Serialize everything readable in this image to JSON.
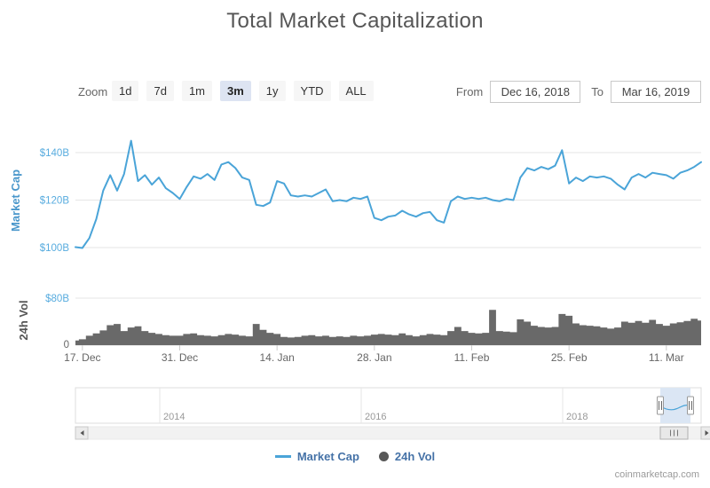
{
  "title": "Total Market Capitalization",
  "attribution": "coinmarketcap.com",
  "range_selector": {
    "zoom_label": "Zoom",
    "buttons": [
      {
        "label": "1d",
        "selected": false
      },
      {
        "label": "7d",
        "selected": false
      },
      {
        "label": "1m",
        "selected": false
      },
      {
        "label": "3m",
        "selected": true
      },
      {
        "label": "1y",
        "selected": false
      },
      {
        "label": "YTD",
        "selected": false
      },
      {
        "label": "ALL",
        "selected": false
      }
    ],
    "from_label": "From",
    "from_value": "Dec 16, 2018",
    "to_label": "To",
    "to_value": "Mar 16, 2019"
  },
  "legend": [
    {
      "label": "Market Cap",
      "marker": "line",
      "color": "#4AA4D8"
    },
    {
      "label": "24h Vol",
      "marker": "circle",
      "color": "#585858"
    }
  ],
  "icons": {
    "scrollbar-left-arrow": "◄",
    "scrollbar-right-arrow": "►",
    "navigator-handle-grip": "||",
    "scrollbar-thumb-grip": "|||"
  },
  "colors": {
    "title": "#565656",
    "market_cap_line": "#4AA4D8",
    "market_cap_axis_label": "#58ACDF",
    "market_cap_axis_title": "#4A97CB",
    "volume_area": "#696969",
    "volume_axis_title": "#555555",
    "volume_zero_label": "#666666",
    "gridline": "#e6e6e6",
    "x_label": "#666666",
    "selected_button_bg": "#dde4f2",
    "navigator_selection": "#dbe6f4",
    "legend_text": "#4572a7"
  },
  "chart_data": {
    "type": "line",
    "title": "Total Market Capitalization",
    "x_start": "Dec 16, 2018",
    "x_end": "Mar 16, 2019",
    "x_tick_labels": [
      "17. Dec",
      "31. Dec",
      "14. Jan",
      "28. Jan",
      "11. Feb",
      "25. Feb",
      "11. Mar"
    ],
    "x_tick_day_offsets": [
      1,
      15,
      29,
      43,
      57,
      71,
      85
    ],
    "grid": true,
    "legend_position": "bottom-center",
    "series": [
      {
        "name": "Market Cap",
        "type": "line",
        "color": "#4AA4D8",
        "unit": "USD billions",
        "axis_title": "Market Cap",
        "y_ticks": [
          "$100B",
          "$120B",
          "$140B"
        ],
        "y_tick_values": [
          100,
          120,
          140
        ],
        "ylim": [
          97,
          148
        ],
        "values": [
          100.2,
          99.8,
          104,
          112,
          124,
          130.5,
          124,
          131,
          145,
          128,
          130.5,
          126.5,
          129.5,
          125,
          123,
          120.5,
          125.5,
          130,
          129,
          131,
          128.5,
          135,
          136,
          133.5,
          129.5,
          128.5,
          118,
          117.5,
          119,
          128,
          127,
          122,
          121.5,
          122,
          121.5,
          123,
          124.5,
          119.5,
          120,
          119.5,
          121,
          120.5,
          121.5,
          112.5,
          111.5,
          113,
          113.5,
          115.5,
          114,
          113,
          114.5,
          115,
          111.5,
          110.5,
          119.5,
          121.5,
          120.5,
          121,
          120.5,
          121,
          120,
          119.5,
          120.5,
          120,
          129.5,
          133.5,
          132.5,
          134,
          133,
          134.5,
          141,
          127,
          129.5,
          128,
          130,
          129.5,
          130,
          129,
          126.5,
          124.5,
          129.5,
          131,
          129.5,
          131.5,
          131,
          130.5,
          129,
          131.5,
          132.5,
          134,
          136
        ]
      },
      {
        "name": "24h Vol",
        "type": "area",
        "color": "#696969",
        "unit": "USD billions",
        "axis_title": "24h Vol",
        "y_ticks": [
          "0",
          "$80B"
        ],
        "y_tick_values": [
          0,
          80
        ],
        "ylim": [
          0,
          80
        ],
        "values": [
          8,
          10,
          16,
          20,
          25,
          34,
          36,
          24,
          30,
          32,
          24,
          21,
          19,
          17,
          16,
          16,
          19,
          20,
          17,
          16,
          15,
          17,
          19,
          18,
          16,
          15,
          36,
          26,
          21,
          19,
          14,
          13,
          14,
          16,
          17,
          15,
          16,
          14,
          15,
          14,
          16,
          15,
          16,
          18,
          19,
          18,
          17,
          20,
          17,
          15,
          17,
          19,
          18,
          17,
          24,
          31,
          24,
          21,
          20,
          21,
          60,
          24,
          23,
          22,
          44,
          40,
          33,
          31,
          30,
          31,
          53,
          50,
          37,
          34,
          33,
          32,
          30,
          28,
          30,
          40,
          38,
          41,
          38,
          43,
          36,
          33,
          37,
          39,
          41,
          45,
          42
        ]
      }
    ],
    "navigator": {
      "years": [
        "2014",
        "2016",
        "2018"
      ],
      "selection": "right edge (Dec 2018 - Mar 2019)"
    }
  }
}
